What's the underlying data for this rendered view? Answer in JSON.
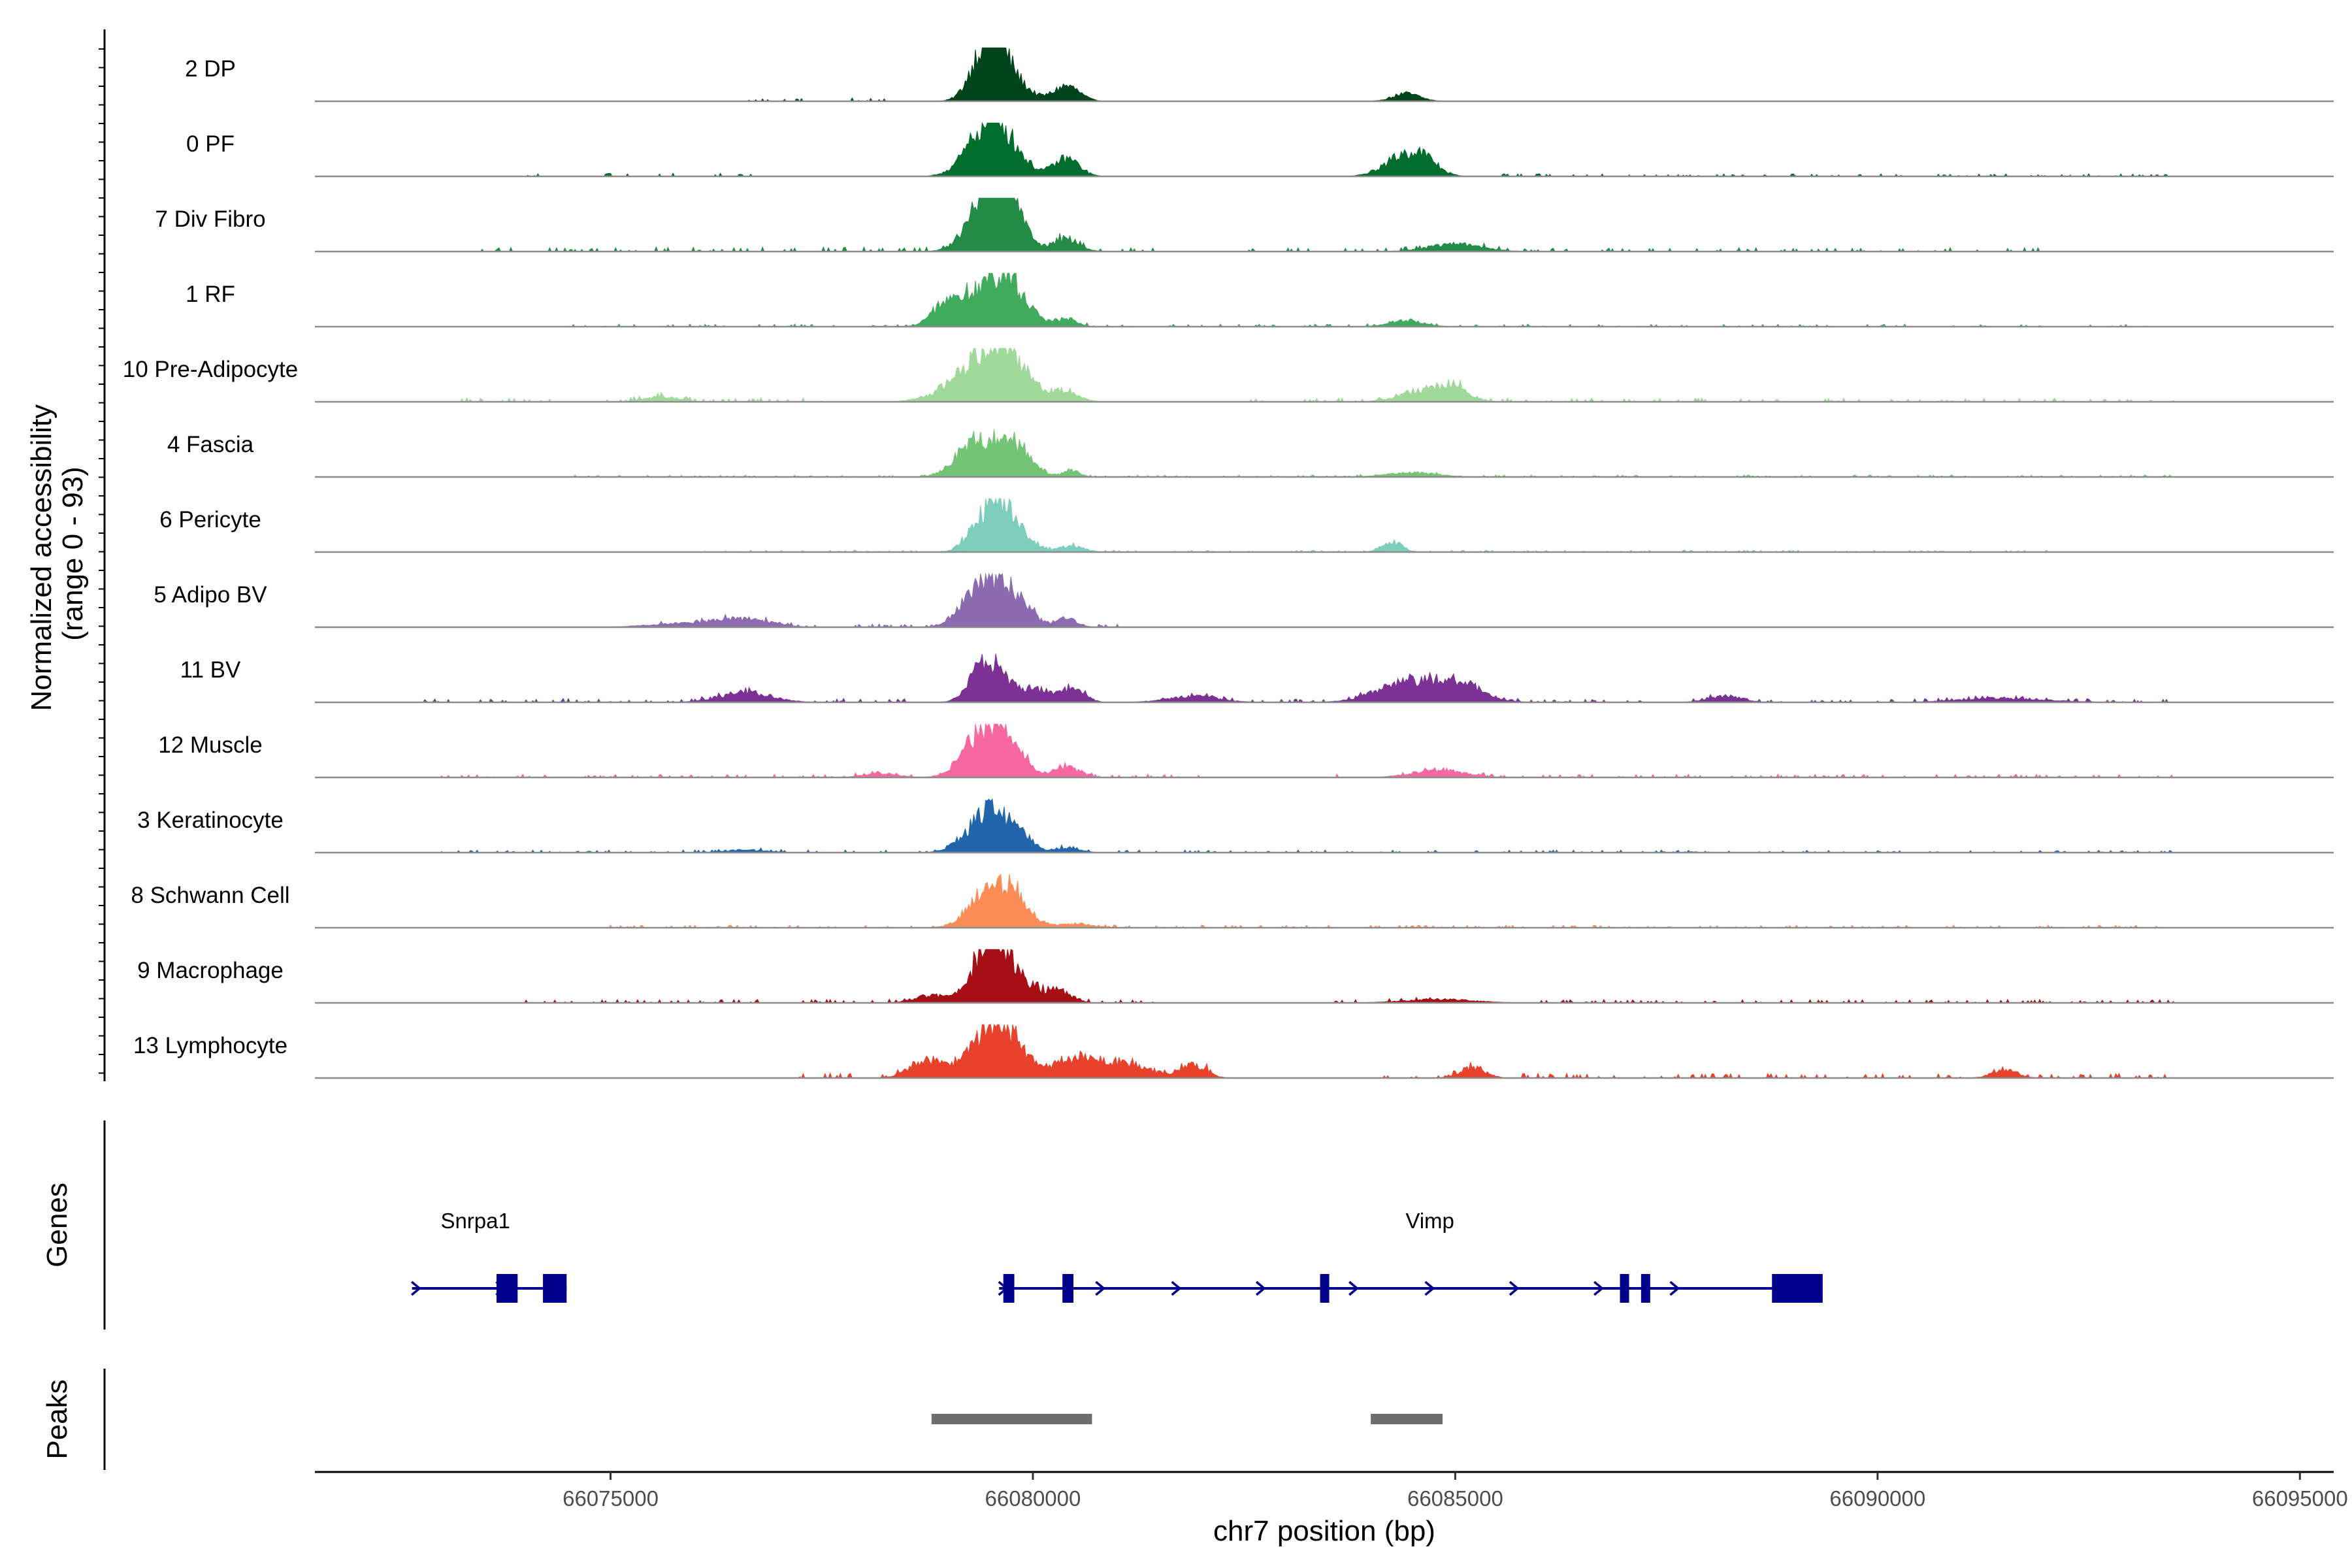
{
  "chart_data": {
    "type": "area",
    "title": "",
    "xlabel": "chr7 position (bp)",
    "ylabel_line1": "Normalized accessibility",
    "ylabel_line2": "(range 0 - 93)",
    "xlim": [
      66071500,
      66095400
    ],
    "ylim": [
      0,
      93
    ],
    "xticks": [
      66075000,
      66080000,
      66085000,
      66090000,
      66095000
    ],
    "xtick_labels": [
      "66075000",
      "66080000",
      "66085000",
      "66090000",
      "66095000"
    ],
    "series": [
      {
        "name": "2 DP",
        "color": "#00441B",
        "scale": 0.95,
        "peaks": [
          [
            66079520,
            180,
            0.7
          ],
          [
            66079400,
            160,
            0.45
          ],
          [
            66079700,
            220,
            0.4
          ],
          [
            66080400,
            150,
            0.3
          ],
          [
            66084420,
            160,
            0.15
          ]
        ],
        "noise": [
          [
            66076500,
            66077300,
            0.04
          ],
          [
            66077800,
            66078300,
            0.05
          ]
        ]
      },
      {
        "name": "0 PF",
        "color": "#006D2C",
        "scale": 0.95,
        "peaks": [
          [
            66079520,
            180,
            0.75
          ],
          [
            66079300,
            200,
            0.4
          ],
          [
            66079750,
            200,
            0.4
          ],
          [
            66080400,
            150,
            0.35
          ],
          [
            66084400,
            230,
            0.4
          ],
          [
            66084650,
            160,
            0.2
          ]
        ],
        "noise": [
          [
            66074000,
            66077000,
            0.05
          ],
          [
            66085500,
            66093500,
            0.04
          ]
        ]
      },
      {
        "name": "7 Div Fibro",
        "color": "#238B45",
        "scale": 0.95,
        "peaks": [
          [
            66079550,
            160,
            1.0
          ],
          [
            66079700,
            200,
            0.75
          ],
          [
            66079350,
            200,
            0.5
          ],
          [
            66080400,
            150,
            0.25
          ],
          [
            66085000,
            300,
            0.15
          ]
        ],
        "noise": [
          [
            66073400,
            66081500,
            0.07
          ],
          [
            66082500,
            66092000,
            0.06
          ]
        ]
      },
      {
        "name": "1 RF",
        "color": "#41AB5D",
        "scale": 0.95,
        "peaks": [
          [
            66079450,
            300,
            0.8
          ],
          [
            66079750,
            200,
            0.45
          ],
          [
            66078950,
            150,
            0.3
          ],
          [
            66080400,
            120,
            0.15
          ],
          [
            66084420,
            200,
            0.12
          ]
        ],
        "noise": [
          [
            66074500,
            66093500,
            0.04
          ]
        ]
      },
      {
        "name": "10 Pre-Adipocyte",
        "color": "#A1D99B",
        "scale": 0.95,
        "peaks": [
          [
            66079400,
            350,
            0.75
          ],
          [
            66079700,
            250,
            0.6
          ],
          [
            66080400,
            150,
            0.2
          ],
          [
            66084700,
            300,
            0.25
          ],
          [
            66085000,
            150,
            0.18
          ],
          [
            66075600,
            200,
            0.1
          ]
        ],
        "noise": [
          [
            66073000,
            66077500,
            0.06
          ],
          [
            66082500,
            66093500,
            0.06
          ]
        ]
      },
      {
        "name": "4 Fascia",
        "color": "#74C476",
        "scale": 0.95,
        "peaks": [
          [
            66079600,
            250,
            0.55
          ],
          [
            66079250,
            200,
            0.45
          ],
          [
            66079850,
            150,
            0.3
          ],
          [
            66080450,
            100,
            0.12
          ],
          [
            66084500,
            300,
            0.08
          ]
        ],
        "noise": [
          [
            66074500,
            66093500,
            0.03
          ]
        ]
      },
      {
        "name": "6 Pericyte",
        "color": "#7FCDBB",
        "scale": 0.95,
        "peaks": [
          [
            66079600,
            150,
            0.75
          ],
          [
            66079350,
            150,
            0.45
          ],
          [
            66079800,
            180,
            0.35
          ],
          [
            66080450,
            150,
            0.12
          ],
          [
            66084250,
            120,
            0.2
          ]
        ],
        "noise": [
          [
            66076000,
            66092000,
            0.03
          ]
        ]
      },
      {
        "name": "5 Adipo BV",
        "color": "#8C6BB1",
        "scale": 0.95,
        "peaks": [
          [
            66079550,
            200,
            0.65
          ],
          [
            66079300,
            200,
            0.45
          ],
          [
            66079850,
            180,
            0.35
          ],
          [
            66080400,
            120,
            0.18
          ],
          [
            66076600,
            300,
            0.15
          ],
          [
            66075900,
            400,
            0.08
          ]
        ],
        "noise": [
          [
            66075300,
            66081000,
            0.05
          ]
        ]
      },
      {
        "name": "11 BV",
        "color": "#7B3294",
        "scale": 0.95,
        "peaks": [
          [
            66079550,
            180,
            0.6
          ],
          [
            66079350,
            150,
            0.35
          ],
          [
            66080050,
            200,
            0.25
          ],
          [
            66080500,
            120,
            0.3
          ],
          [
            66084400,
            350,
            0.35
          ],
          [
            66085000,
            300,
            0.35
          ],
          [
            66076600,
            300,
            0.2
          ],
          [
            66081900,
            300,
            0.12
          ],
          [
            66088200,
            200,
            0.12
          ],
          [
            66091500,
            500,
            0.08
          ]
        ],
        "noise": [
          [
            66072800,
            66078500,
            0.06
          ],
          [
            66081500,
            66093500,
            0.05
          ]
        ]
      },
      {
        "name": "12 Muscle",
        "color": "#F768A1",
        "scale": 0.95,
        "peaks": [
          [
            66079550,
            200,
            0.75
          ],
          [
            66079300,
            200,
            0.45
          ],
          [
            66079800,
            150,
            0.35
          ],
          [
            66080400,
            150,
            0.2
          ],
          [
            66084800,
            300,
            0.15
          ],
          [
            66078200,
            200,
            0.08
          ]
        ],
        "noise": [
          [
            66073000,
            66082000,
            0.05
          ],
          [
            66083500,
            66093500,
            0.05
          ]
        ]
      },
      {
        "name": "3 Keratinocyte",
        "color": "#2166AC",
        "scale": 0.95,
        "peaks": [
          [
            66079550,
            180,
            0.65
          ],
          [
            66079300,
            200,
            0.35
          ],
          [
            66079850,
            150,
            0.3
          ],
          [
            66080400,
            150,
            0.1
          ],
          [
            66076600,
            250,
            0.05
          ]
        ],
        "noise": [
          [
            66073000,
            66093500,
            0.04
          ]
        ]
      },
      {
        "name": "8 Schwann Cell",
        "color": "#FC8D59",
        "scale": 0.95,
        "peaks": [
          [
            66079500,
            230,
            0.75
          ],
          [
            66079800,
            180,
            0.4
          ],
          [
            66080500,
            200,
            0.08
          ]
        ],
        "noise": [
          [
            66075000,
            66093500,
            0.04
          ]
        ]
      },
      {
        "name": "9 Macrophage",
        "color": "#A50F15",
        "scale": 0.95,
        "peaks": [
          [
            66079570,
            150,
            1.0
          ],
          [
            66079350,
            150,
            0.55
          ],
          [
            66079850,
            180,
            0.4
          ],
          [
            66080300,
            150,
            0.25
          ],
          [
            66078800,
            200,
            0.15
          ],
          [
            66084800,
            400,
            0.07
          ]
        ],
        "noise": [
          [
            66074000,
            66081500,
            0.05
          ],
          [
            66083500,
            66093500,
            0.05
          ]
        ]
      },
      {
        "name": "13 Lymphocyte",
        "color": "#E8412C",
        "scale": 0.95,
        "peaks": [
          [
            66079600,
            150,
            0.8
          ],
          [
            66079350,
            180,
            0.55
          ],
          [
            66079850,
            150,
            0.45
          ],
          [
            66080500,
            300,
            0.35
          ],
          [
            66081100,
            300,
            0.25
          ],
          [
            66081900,
            150,
            0.25
          ],
          [
            66078750,
            200,
            0.35
          ],
          [
            66085200,
            150,
            0.2
          ],
          [
            66091500,
            150,
            0.15
          ]
        ],
        "noise": [
          [
            66077200,
            66082200,
            0.08
          ],
          [
            66084000,
            66093500,
            0.07
          ]
        ]
      }
    ],
    "genes": [
      {
        "name": "Snrpa1",
        "strand": "+",
        "start": 66072650,
        "end": 66074480,
        "exons": [
          [
            66073650,
            66073900
          ],
          [
            66074200,
            66074480
          ]
        ],
        "label_pos": 66073400,
        "arrows": [
          66072700,
          66073700
        ]
      },
      {
        "name": "Vimp",
        "strand": "+",
        "start": 66079600,
        "end": 66089350,
        "exons": [
          [
            66079650,
            66079780
          ],
          [
            66080350,
            66080480
          ],
          [
            66083400,
            66083500
          ],
          [
            66086950,
            66087050
          ],
          [
            66087200,
            66087280
          ],
          [
            66088750,
            66089350
          ]
        ],
        "label_pos": 66084700,
        "arrows": [
          66079650,
          66080800,
          66081700,
          66082700,
          66083800,
          66084700,
          66085700,
          66086700,
          66087600
        ]
      }
    ],
    "peaks_track": [
      [
        66078800,
        66080700
      ],
      [
        66084000,
        66084850
      ]
    ],
    "gene_track_title": "Genes",
    "peaks_track_title": "Peaks"
  }
}
